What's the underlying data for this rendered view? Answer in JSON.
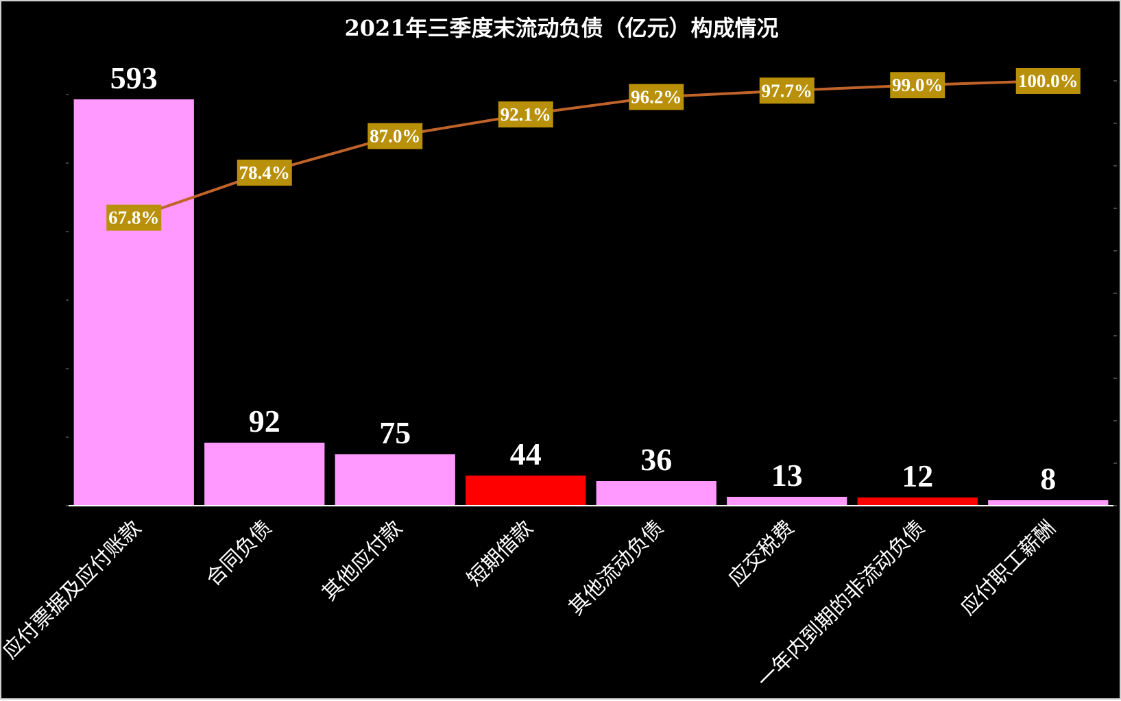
{
  "chart_data": {
    "type": "bar",
    "title": "2021年三季度末流动负债（亿元）构成情况",
    "categories": [
      "应付票据及应付账款",
      "合同负债",
      "其他应付款",
      "短期借款",
      "其他流动负债",
      "应交税费",
      "一年内到期的非流动负债",
      "应付职工薪酬"
    ],
    "values": [
      593,
      92,
      75,
      44,
      36,
      13,
      12,
      8
    ],
    "bar_colors": [
      "#ff99ff",
      "#ff99ff",
      "#ff99ff",
      "#ff0000",
      "#ff99ff",
      "#ff99ff",
      "#ff0000",
      "#ff99ff"
    ],
    "ylim": [
      0,
      600
    ],
    "cumulative": {
      "type": "line",
      "values": [
        67.8,
        78.4,
        87.0,
        92.1,
        96.2,
        97.7,
        99.0,
        100.0
      ],
      "labels": [
        "67.8%",
        "78.4%",
        "87.0%",
        "92.1%",
        "96.2%",
        "97.7%",
        "99.0%",
        "100.0%"
      ],
      "ylim": [
        0,
        100
      ],
      "line_color": "#c0632a",
      "label_bg": "#b8900a"
    },
    "grid": false,
    "legend": "none",
    "background": "#000000"
  }
}
